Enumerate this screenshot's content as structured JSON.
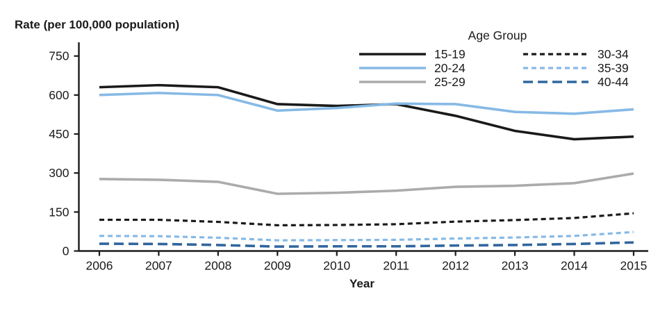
{
  "chart_data": {
    "type": "line",
    "title": "Rate (per 100,000 population)",
    "xlabel": "Year",
    "ylabel": "Rate (per 100,000 population)",
    "x": [
      2006,
      2007,
      2008,
      2009,
      2010,
      2011,
      2012,
      2013,
      2014,
      2015
    ],
    "ylim": [
      0,
      750
    ],
    "yticks": [
      0,
      150,
      300,
      450,
      600,
      750
    ],
    "grid": false,
    "legend_title": "Age Group",
    "legend_position": "top-right-two-columns",
    "series": [
      {
        "name": "15-19",
        "color": "#1a1a1a",
        "style": "solid",
        "values": [
          630,
          638,
          630,
          565,
          558,
          565,
          520,
          462,
          430,
          440
        ]
      },
      {
        "name": "20-24",
        "color": "#86b9e5",
        "style": "solid",
        "values": [
          600,
          608,
          600,
          540,
          550,
          567,
          565,
          535,
          528,
          545
        ]
      },
      {
        "name": "25-29",
        "color": "#ababab",
        "style": "solid",
        "values": [
          277,
          274,
          266,
          220,
          224,
          232,
          247,
          251,
          261,
          298
        ]
      },
      {
        "name": "30-34",
        "color": "#1a1a1a",
        "style": "dashed-short",
        "values": [
          120,
          120,
          112,
          99,
          100,
          103,
          113,
          119,
          127,
          145
        ]
      },
      {
        "name": "35-39",
        "color": "#86b9e5",
        "style": "dashed-short",
        "values": [
          58,
          57,
          51,
          41,
          42,
          43,
          48,
          52,
          58,
          73
        ]
      },
      {
        "name": "40-44",
        "color": "#31669e",
        "style": "dashed-long",
        "values": [
          28,
          27,
          23,
          17,
          18,
          18,
          21,
          23,
          27,
          33
        ]
      }
    ]
  },
  "axis_color": "#1a1a1a"
}
